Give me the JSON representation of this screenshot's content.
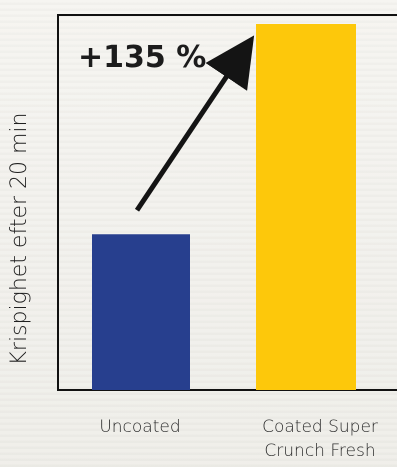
{
  "chart_data": {
    "type": "bar",
    "categories": [
      "Uncoated",
      "Coated Super Crunch Fresh"
    ],
    "category_lines": [
      [
        "Uncoated"
      ],
      [
        "Coated Super",
        "Crunch Fresh"
      ]
    ],
    "values": [
      100,
      235
    ],
    "colors": [
      "#273f8e",
      "#fdc80b"
    ],
    "ylabel": "Krispighet efter 20 min",
    "ylim": [
      0,
      235
    ],
    "grid": false,
    "annotation": {
      "text": "+135 %",
      "arrow_from_category": "Uncoated",
      "arrow_to_category": "Coated Super Crunch Fresh"
    }
  }
}
